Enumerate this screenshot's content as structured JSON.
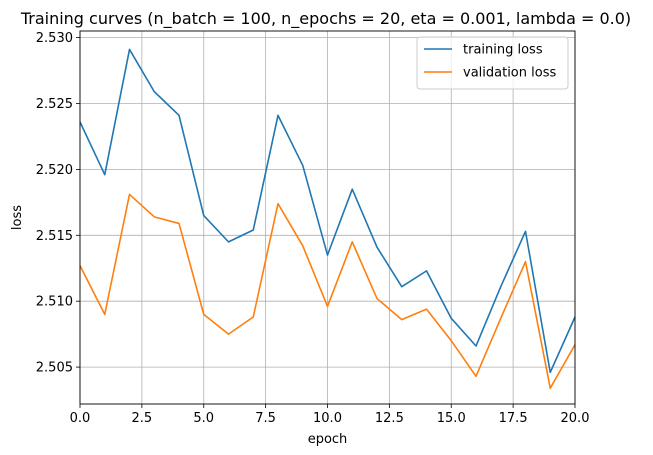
{
  "chart_data": {
    "type": "line",
    "title": "Training curves (n_batch = 100, n_epochs = 20, eta = 0.001, lambda = 0.0)",
    "xlabel": "epoch",
    "ylabel": "loss",
    "xlim": [
      0,
      20
    ],
    "ylim": [
      2.5022,
      2.5305
    ],
    "x_ticks": [
      0,
      2.5,
      5,
      7.5,
      10,
      12.5,
      15,
      17.5,
      20
    ],
    "x_tick_labels": [
      "0.0",
      "2.5",
      "5.0",
      "7.5",
      "10.0",
      "12.5",
      "15.0",
      "17.5",
      "20.0"
    ],
    "y_ticks": [
      2.505,
      2.51,
      2.515,
      2.52,
      2.525,
      2.53
    ],
    "y_tick_labels": [
      "2.505",
      "2.510",
      "2.515",
      "2.520",
      "2.525",
      "2.530"
    ],
    "grid": true,
    "legend_position": "top-right",
    "x": [
      0,
      1,
      2,
      3,
      4,
      5,
      6,
      7,
      8,
      9,
      10,
      11,
      12,
      13,
      14,
      15,
      16,
      17,
      18,
      19,
      20
    ],
    "series": [
      {
        "name": "training loss",
        "color": "#1f77b4",
        "values": [
          2.5236,
          2.5196,
          2.5291,
          2.5259,
          2.5241,
          2.5165,
          2.5145,
          2.5154,
          2.5241,
          2.5203,
          2.5135,
          2.5185,
          2.5141,
          2.5111,
          2.5123,
          2.5087,
          2.5066,
          2.5111,
          2.5153,
          2.5046,
          2.5088
        ]
      },
      {
        "name": "validation loss",
        "color": "#ff7f0e",
        "values": [
          2.5127,
          2.509,
          2.5181,
          2.5164,
          2.5159,
          2.509,
          2.5075,
          2.5088,
          2.5174,
          2.5142,
          2.5096,
          2.5145,
          2.5102,
          2.5086,
          2.5094,
          2.507,
          2.5043,
          2.5087,
          2.513,
          2.5034,
          2.5067
        ]
      }
    ]
  }
}
